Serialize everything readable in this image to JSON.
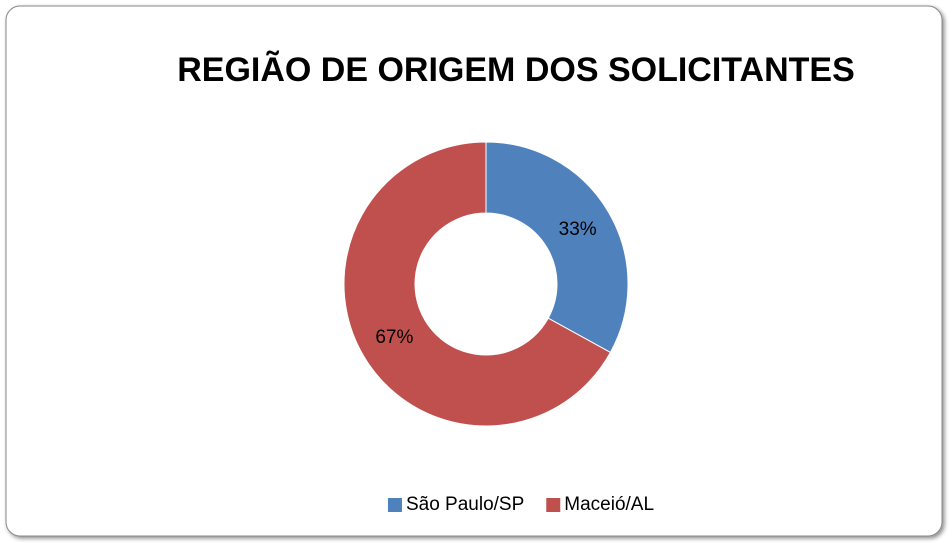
{
  "chart_data": {
    "type": "donut",
    "title": "REGIÃO DE ORIGEM DOS SOLICITANTES",
    "categories": [
      "São Paulo/SP",
      "Maceió/AL"
    ],
    "values": [
      33,
      67
    ],
    "value_labels": [
      "33%",
      "67%"
    ],
    "colors": [
      "#4f81bd",
      "#c0504d"
    ],
    "legend": "bottom"
  }
}
